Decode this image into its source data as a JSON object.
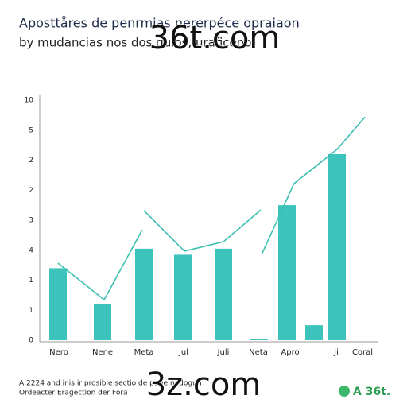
{
  "chart_data": {
    "type": "bar",
    "title": "Aposttåres de penrmias nererpéce opraiaon",
    "subtitle": "by mudancias nos dos quios, uraficeno",
    "watermarks": [
      "36t.com",
      "3z.com"
    ],
    "footer": [
      "A 2224 and inis ir prosible sectio de perie nedogun",
      "Ordeacter Eragection der Fora"
    ],
    "logo": "A 36t.",
    "categories": [
      "Nero",
      "Nene",
      "Meta",
      "Jul",
      "Juli",
      "Neta",
      "Apro",
      null,
      "Ji",
      "Coral"
    ],
    "ylim": [
      0,
      8
    ],
    "yticks": [
      0,
      1,
      {
        "value": 2,
        "label": "1"
      },
      {
        "value": 3,
        "label": "4"
      },
      {
        "value": 4,
        "label": "3"
      },
      {
        "value": 5,
        "label": "2"
      },
      {
        "value": 6,
        "label": "2"
      },
      {
        "value": 7,
        "label": "5"
      },
      {
        "value": 8,
        "label": "10"
      }
    ],
    "series": [
      {
        "type": "bar",
        "color": "#3cc4bc",
        "values": [
          2.4,
          1.2,
          3.05,
          2.85,
          3.05,
          0.05,
          4.5,
          0.5,
          6.2,
          null
        ]
      },
      {
        "type": "line",
        "color": "#3bbfb0",
        "x": [
          0,
          1.04,
          1.96,
          null,
          2,
          3.04,
          4,
          5.06,
          null,
          5.09,
          6.26,
          8,
          9.1
        ],
        "values": [
          2.57,
          1.35,
          3.68,
          null,
          4.32,
          2.97,
          3.28,
          4.34,
          null,
          2.86,
          5.22,
          6.36,
          7.44
        ]
      }
    ]
  }
}
